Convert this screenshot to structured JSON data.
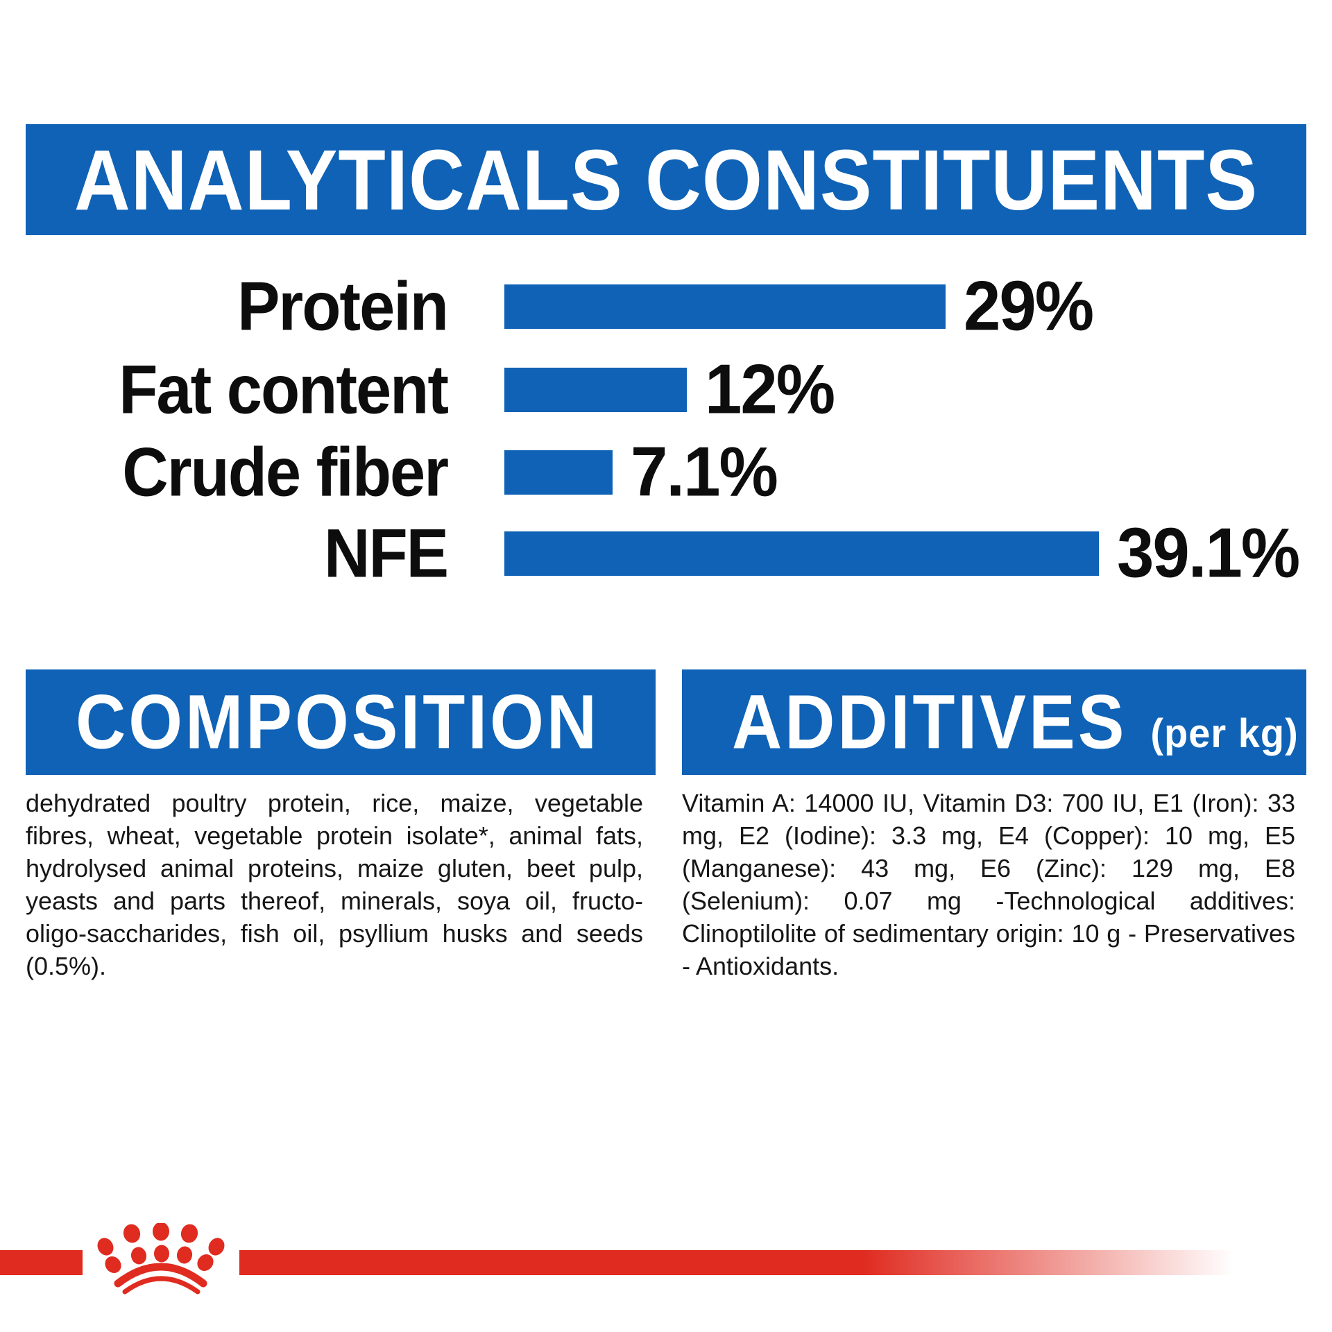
{
  "colors": {
    "brand_blue": "#0F62B5",
    "brand_red": "#E02B20",
    "text_black": "#0d0d0d"
  },
  "analyticals": {
    "title": "ANALYTICALS CONSTITUENTS"
  },
  "chart_data": {
    "type": "bar",
    "orientation": "horizontal",
    "title": "ANALYTICALS CONSTITUENTS",
    "categories": [
      "Protein",
      "Fat content",
      "Crude fiber",
      "NFE"
    ],
    "values": [
      29,
      12,
      7.1,
      39.1
    ],
    "value_labels": [
      "29%",
      "12%",
      "7.1%",
      "39.1%"
    ],
    "unit": "%",
    "xlim": [
      0,
      42
    ],
    "bar_color": "#0F62B5",
    "grid": false,
    "legend": false
  },
  "composition": {
    "title": "COMPOSITION",
    "body": "dehydrated poultry protein, rice, maize, vegetable fibres, wheat, vegetable protein isolate*, animal fats, hydrolysed animal proteins, maize gluten, beet pulp, yeasts and parts thereof, minerals, soya oil, fructo-oligo-saccharides, fish oil, psyllium husks and seeds (0.5%)."
  },
  "additives": {
    "title": "ADDITIVES",
    "title_suffix": "(per kg)",
    "body": "Vitamin A: 14000 IU, Vitamin D3: 700 IU, E1 (Iron): 33 mg, E2 (Iodine): 3.3 mg, E4 (Copper): 10 mg, E5 (Manganese): 43 mg, E6 (Zinc): 129 mg, E8 (Selenium): 0.07 mg -Technological additives: Clinoptilolite of sedimentary origin: 10 g - Preservatives - Antioxidants.",
    "footnote_marker": "*"
  },
  "footer": {
    "logo": "royal-canin-crown"
  }
}
